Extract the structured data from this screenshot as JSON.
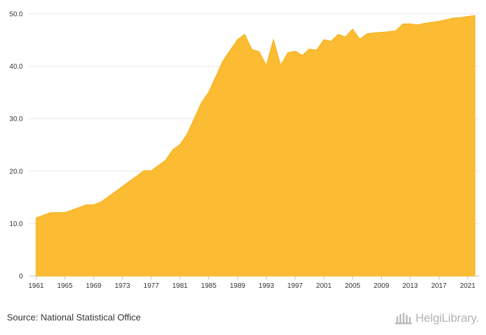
{
  "chart_data": {
    "type": "area",
    "x": [
      1961,
      1962,
      1963,
      1964,
      1965,
      1966,
      1967,
      1968,
      1969,
      1970,
      1971,
      1972,
      1973,
      1974,
      1975,
      1976,
      1977,
      1978,
      1979,
      1980,
      1981,
      1982,
      1983,
      1984,
      1985,
      1986,
      1987,
      1988,
      1989,
      1990,
      1991,
      1992,
      1993,
      1994,
      1995,
      1996,
      1997,
      1998,
      1999,
      2000,
      2001,
      2002,
      2003,
      2004,
      2005,
      2006,
      2007,
      2008,
      2009,
      2010,
      2011,
      2012,
      2013,
      2014,
      2015,
      2016,
      2017,
      2018,
      2019,
      2020,
      2021,
      2022
    ],
    "series": [
      {
        "values": [
          11.1,
          11.6,
          12.1,
          12.1,
          12.1,
          12.6,
          13.1,
          13.6,
          13.6,
          14.1,
          15.1,
          16.1,
          17.1,
          18.1,
          19.1,
          20.1,
          20.1,
          21.1,
          22.1,
          24.1,
          25.1,
          27.1,
          30.1,
          33.1,
          35.1,
          38.1,
          41.1,
          43.1,
          45.1,
          46.1,
          43.2,
          42.8,
          40.2,
          45.1,
          40.2,
          42.6,
          42.9,
          42.1,
          43.3,
          43.1,
          45.1,
          44.8,
          46.1,
          45.6,
          47.1,
          45.2,
          46.2,
          46.4,
          46.5,
          46.6,
          46.8,
          48.1,
          48.1,
          47.9,
          48.2,
          48.4,
          48.6,
          48.9,
          49.2,
          49.3,
          49.5,
          49.7
        ]
      }
    ],
    "x_ticks": [
      "1961",
      "1965",
      "1969",
      "1973",
      "1977",
      "1981",
      "1985",
      "1989",
      "1993",
      "1997",
      "2001",
      "2005",
      "2009",
      "2013",
      "2017",
      "2021"
    ],
    "y_ticks": [
      "0",
      "10.0",
      "20.0",
      "30.0",
      "40.0",
      "50.0"
    ],
    "ylim": [
      0,
      50
    ],
    "fill_color": "#fbbb32",
    "grid": true
  },
  "footer": {
    "source": "Source: National Statistical Office",
    "logo_text": "HelgiLibrary."
  }
}
